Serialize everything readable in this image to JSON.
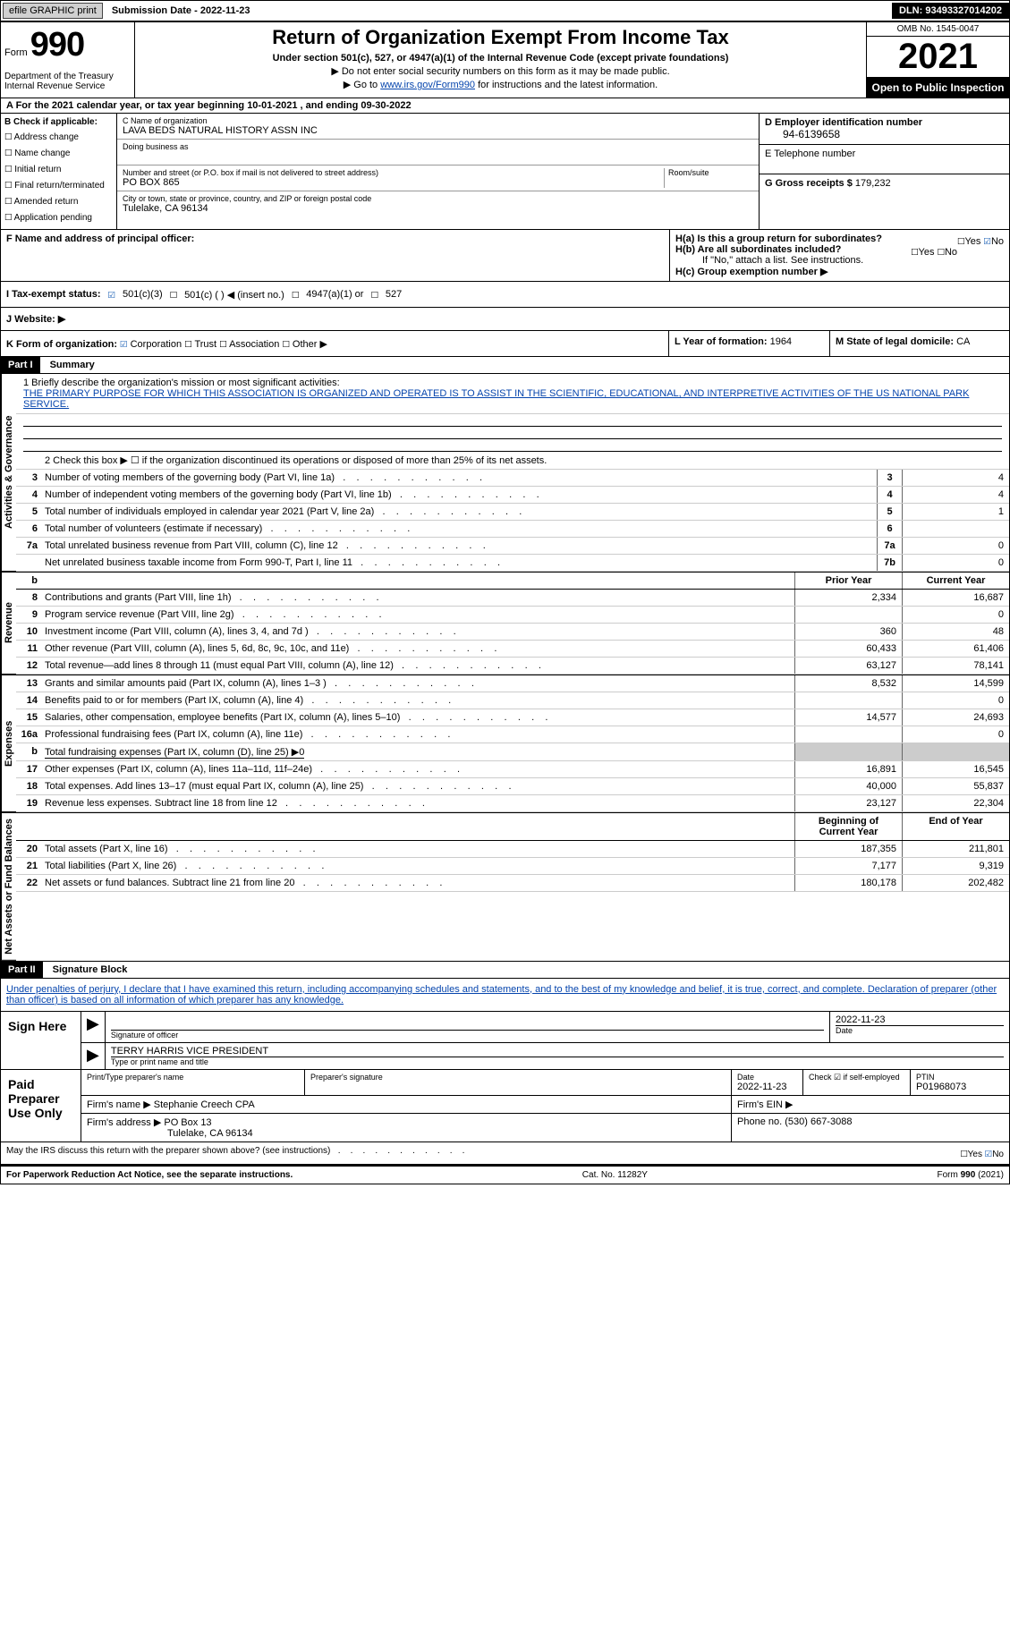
{
  "topbar": {
    "efile": "efile GRAPHIC print",
    "submission": "Submission Date - 2022-11-23",
    "dln": "DLN: 93493327014202"
  },
  "header": {
    "form_prefix": "Form",
    "form_number": "990",
    "dept": "Department of the Treasury Internal Revenue Service",
    "title": "Return of Organization Exempt From Income Tax",
    "subtitle": "Under section 501(c), 527, or 4947(a)(1) of the Internal Revenue Code (except private foundations)",
    "instr1": "▶ Do not enter social security numbers on this form as it may be made public.",
    "instr2_pre": "▶ Go to ",
    "instr2_link": "www.irs.gov/Form990",
    "instr2_post": " for instructions and the latest information.",
    "omb": "OMB No. 1545-0047",
    "year": "2021",
    "inspect": "Open to Public Inspection"
  },
  "rowA": "A For the 2021 calendar year, or tax year beginning 10-01-2021   , and ending 09-30-2022",
  "colB": {
    "heading": "B Check if applicable:",
    "items": [
      "Address change",
      "Name change",
      "Initial return",
      "Final return/terminated",
      "Amended return",
      "Application pending"
    ]
  },
  "colC": {
    "name_label": "C Name of organization",
    "name": "LAVA BEDS NATURAL HISTORY ASSN INC",
    "dba_label": "Doing business as",
    "street_label": "Number and street (or P.O. box if mail is not delivered to street address)",
    "room_label": "Room/suite",
    "street": "PO BOX 865",
    "city_label": "City or town, state or province, country, and ZIP or foreign postal code",
    "city": "Tulelake, CA  96134"
  },
  "colD": {
    "ein_label": "D Employer identification number",
    "ein": "94-6139658",
    "phone_label": "E Telephone number",
    "gross_label": "G Gross receipts $",
    "gross": "179,232"
  },
  "rowF": {
    "label": "F  Name and address of principal officer:"
  },
  "rowH": {
    "ha": "H(a)  Is this a group return for subordinates?",
    "hb": "H(b)  Are all subordinates included?",
    "hb_note": "If \"No,\" attach a list. See instructions.",
    "hc": "H(c)  Group exemption number ▶",
    "yes": "Yes",
    "no": "No"
  },
  "status": {
    "label": "I   Tax-exempt status:",
    "c3": "501(c)(3)",
    "c": "501(c) (  ) ◀ (insert no.)",
    "a1": "4947(a)(1) or",
    "s527": "527"
  },
  "website_label": "J   Website: ▶",
  "rowK": {
    "label": "K Form of organization:",
    "corp": "Corporation",
    "trust": "Trust",
    "assoc": "Association",
    "other": "Other ▶",
    "year_label": "L Year of formation:",
    "year": "1964",
    "state_label": "M State of legal domicile:",
    "state": "CA"
  },
  "part1": {
    "header": "Part I",
    "title": "Summary",
    "line1_label": "1   Briefly describe the organization's mission or most significant activities:",
    "mission": "THE PRIMARY PURPOSE FOR WHICH THIS ASSOCIATION IS ORGANIZED AND OPERATED IS TO ASSIST IN THE SCIENTIFIC, EDUCATIONAL, AND INTERPRETIVE ACTIVITIES OF THE US NATIONAL PARK SERVICE.",
    "line2": "2     Check this box ▶ ☐  if the organization discontinued its operations or disposed of more than 25% of its net assets.",
    "tabs": {
      "gov": "Activities & Governance",
      "rev": "Revenue",
      "exp": "Expenses",
      "net": "Net Assets or Fund Balances"
    },
    "col_prior": "Prior Year",
    "col_current": "Current Year",
    "col_begin": "Beginning of Current Year",
    "col_end": "End of Year",
    "rows_gov": [
      {
        "n": "3",
        "d": "Number of voting members of the governing body (Part VI, line 1a)",
        "box": "3",
        "v": "4"
      },
      {
        "n": "4",
        "d": "Number of independent voting members of the governing body (Part VI, line 1b)",
        "box": "4",
        "v": "4"
      },
      {
        "n": "5",
        "d": "Total number of individuals employed in calendar year 2021 (Part V, line 2a)",
        "box": "5",
        "v": "1"
      },
      {
        "n": "6",
        "d": "Total number of volunteers (estimate if necessary)",
        "box": "6",
        "v": ""
      },
      {
        "n": "7a",
        "d": "Total unrelated business revenue from Part VIII, column (C), line 12",
        "box": "7a",
        "v": "0"
      },
      {
        "n": "",
        "d": "Net unrelated business taxable income from Form 990-T, Part I, line 11",
        "box": "7b",
        "v": "0"
      }
    ],
    "rows_rev": [
      {
        "n": "8",
        "d": "Contributions and grants (Part VIII, line 1h)",
        "p": "2,334",
        "c": "16,687"
      },
      {
        "n": "9",
        "d": "Program service revenue (Part VIII, line 2g)",
        "p": "",
        "c": "0"
      },
      {
        "n": "10",
        "d": "Investment income (Part VIII, column (A), lines 3, 4, and 7d )",
        "p": "360",
        "c": "48"
      },
      {
        "n": "11",
        "d": "Other revenue (Part VIII, column (A), lines 5, 6d, 8c, 9c, 10c, and 11e)",
        "p": "60,433",
        "c": "61,406"
      },
      {
        "n": "12",
        "d": "Total revenue—add lines 8 through 11 (must equal Part VIII, column (A), line 12)",
        "p": "63,127",
        "c": "78,141"
      }
    ],
    "rows_exp": [
      {
        "n": "13",
        "d": "Grants and similar amounts paid (Part IX, column (A), lines 1–3 )",
        "p": "8,532",
        "c": "14,599"
      },
      {
        "n": "14",
        "d": "Benefits paid to or for members (Part IX, column (A), line 4)",
        "p": "",
        "c": "0"
      },
      {
        "n": "15",
        "d": "Salaries, other compensation, employee benefits (Part IX, column (A), lines 5–10)",
        "p": "14,577",
        "c": "24,693"
      },
      {
        "n": "16a",
        "d": "Professional fundraising fees (Part IX, column (A), line 11e)",
        "p": "",
        "c": "0"
      },
      {
        "n": "b",
        "d": "Total fundraising expenses (Part IX, column (D), line 25) ▶0",
        "grey": true
      },
      {
        "n": "17",
        "d": "Other expenses (Part IX, column (A), lines 11a–11d, 11f–24e)",
        "p": "16,891",
        "c": "16,545"
      },
      {
        "n": "18",
        "d": "Total expenses. Add lines 13–17 (must equal Part IX, column (A), line 25)",
        "p": "40,000",
        "c": "55,837"
      },
      {
        "n": "19",
        "d": "Revenue less expenses. Subtract line 18 from line 12",
        "p": "23,127",
        "c": "22,304"
      }
    ],
    "rows_net": [
      {
        "n": "20",
        "d": "Total assets (Part X, line 16)",
        "p": "187,355",
        "c": "211,801"
      },
      {
        "n": "21",
        "d": "Total liabilities (Part X, line 26)",
        "p": "7,177",
        "c": "9,319"
      },
      {
        "n": "22",
        "d": "Net assets or fund balances. Subtract line 21 from line 20",
        "p": "180,178",
        "c": "202,482"
      }
    ]
  },
  "part2": {
    "header": "Part II",
    "title": "Signature Block",
    "declaration": "Under penalties of perjury, I declare that I have examined this return, including accompanying schedules and statements, and to the best of my knowledge and belief, it is true, correct, and complete. Declaration of preparer (other than officer) is based on all information of which preparer has any knowledge.",
    "sign_here": "Sign Here",
    "sig_officer": "Signature of officer",
    "sig_date": "2022-11-23",
    "date_label": "Date",
    "officer_name": "TERRY HARRIS VICE PRESIDENT",
    "officer_label": "Type or print name and title",
    "paid": "Paid Preparer Use Only",
    "prep_name_label": "Print/Type preparer's name",
    "prep_sig_label": "Preparer's signature",
    "prep_date_label": "Date",
    "prep_date": "2022-11-23",
    "check_label": "Check ☑ if self-employed",
    "ptin_label": "PTIN",
    "ptin": "P01968073",
    "firm_name_label": "Firm's name    ▶",
    "firm_name": "Stephanie Creech CPA",
    "firm_ein_label": "Firm's EIN ▶",
    "firm_addr_label": "Firm's address ▶",
    "firm_addr1": "PO Box 13",
    "firm_addr2": "Tulelake, CA  96134",
    "phone_label": "Phone no.",
    "phone": "(530) 667-3088",
    "discuss": "May the IRS discuss this return with the preparer shown above? (see instructions)"
  },
  "footer": {
    "left": "For Paperwork Reduction Act Notice, see the separate instructions.",
    "mid": "Cat. No. 11282Y",
    "right": "Form 990 (2021)"
  }
}
